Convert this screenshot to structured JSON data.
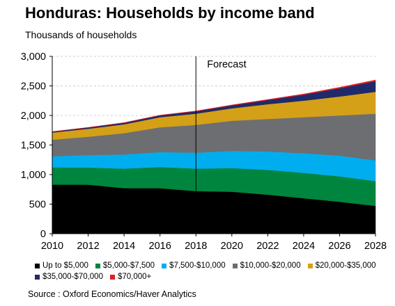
{
  "chart_data": {
    "type": "area",
    "title": "Honduras: Households by income band",
    "subtitle": "Thousands of households",
    "annotation": "Forecast",
    "forecast_start": 2018,
    "source": "Source : Oxford Economics/Haver Analytics",
    "xlim": [
      2010,
      2028
    ],
    "ylim": [
      0,
      3000
    ],
    "x_ticks": [
      2010,
      2012,
      2014,
      2016,
      2018,
      2020,
      2022,
      2024,
      2026,
      2028
    ],
    "y_ticks": [
      0,
      500,
      1000,
      1500,
      2000,
      2500,
      3000
    ],
    "y_tick_labels": [
      "0",
      "500",
      "1,000",
      "1,500",
      "2,000",
      "2,500",
      "3,000"
    ],
    "grid": true,
    "stacked": true,
    "legend_position": "bottom",
    "x": [
      2010,
      2012,
      2014,
      2016,
      2018,
      2020,
      2022,
      2024,
      2026,
      2028
    ],
    "series": [
      {
        "name": "Up to $5,000",
        "color": "#000000",
        "values": [
          830,
          830,
          770,
          770,
          720,
          710,
          660,
          600,
          540,
          470
        ]
      },
      {
        "name": "$5,000-$7,500",
        "color": "#00853f",
        "values": [
          290,
          290,
          330,
          360,
          380,
          400,
          420,
          430,
          430,
          420
        ]
      },
      {
        "name": "$7,500-$10,000",
        "color": "#00aeef",
        "values": [
          190,
          210,
          240,
          250,
          270,
          290,
          310,
          330,
          350,
          350
        ]
      },
      {
        "name": "$10,000-$20,000",
        "color": "#6d6e71",
        "values": [
          280,
          310,
          360,
          420,
          470,
          510,
          550,
          610,
          680,
          790
        ]
      },
      {
        "name": "$20,000-$35,000",
        "color": "#d4a017",
        "values": [
          120,
          135,
          150,
          170,
          190,
          210,
          250,
          280,
          320,
          370
        ]
      },
      {
        "name": "$35,000-$70,000",
        "color": "#1f2a6b",
        "values": [
          15,
          20,
          25,
          30,
          40,
          50,
          70,
          100,
          140,
          180
        ]
      },
      {
        "name": "$70,000+",
        "color": "#e02020",
        "values": [
          2,
          3,
          4,
          5,
          6,
          8,
          10,
          13,
          16,
          20
        ]
      }
    ]
  }
}
